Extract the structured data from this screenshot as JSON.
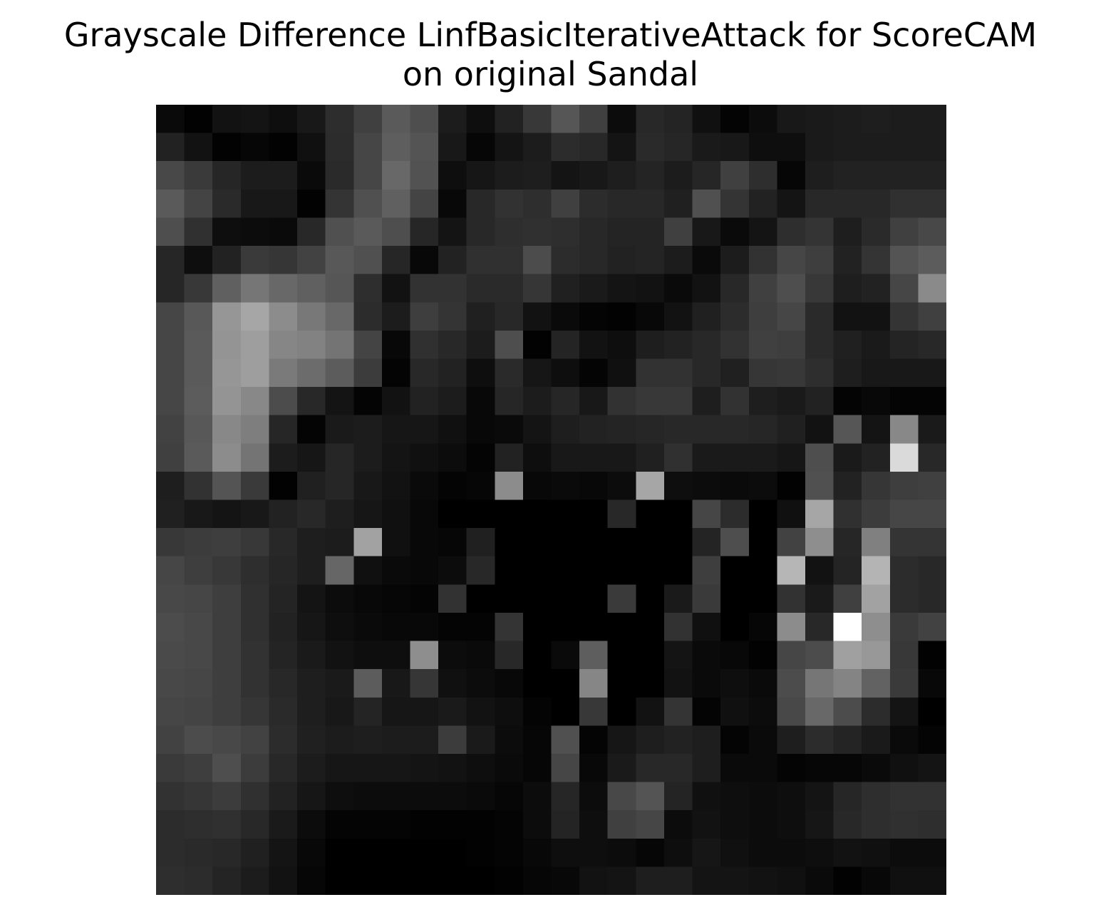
{
  "chart_data": {
    "type": "heatmap",
    "title": "Grayscale Difference LinfBasicIterativeAttack for ScoreCAM on original Sandal",
    "title_lines": [
      "Grayscale Difference LinfBasicIterativeAttack for ScoreCAM",
      "on original Sandal"
    ],
    "xlabel": "",
    "ylabel": "",
    "axes_visible": false,
    "colormap": "gray",
    "value_range": [
      0,
      255
    ],
    "rows": 28,
    "cols": 28,
    "values": [
      [
        10,
        2,
        18,
        20,
        14,
        24,
        45,
        64,
        90,
        78,
        28,
        14,
        34,
        56,
        86,
        64,
        12,
        40,
        36,
        16,
        4,
        12,
        24,
        26,
        28,
        30,
        28,
        28
      ],
      [
        34,
        18,
        2,
        6,
        2,
        16,
        44,
        70,
        94,
        84,
        24,
        6,
        20,
        28,
        44,
        40,
        20,
        42,
        38,
        26,
        24,
        14,
        14,
        26,
        28,
        28,
        28,
        28
      ],
      [
        72,
        58,
        38,
        28,
        28,
        10,
        42,
        70,
        104,
        82,
        14,
        22,
        28,
        30,
        20,
        24,
        30,
        36,
        28,
        38,
        64,
        46,
        6,
        30,
        34,
        34,
        34,
        34
      ],
      [
        90,
        68,
        42,
        24,
        24,
        2,
        52,
        80,
        96,
        68,
        8,
        40,
        50,
        46,
        64,
        44,
        40,
        40,
        32,
        80,
        52,
        34,
        20,
        40,
        40,
        40,
        48,
        48
      ],
      [
        78,
        48,
        14,
        12,
        10,
        40,
        80,
        90,
        78,
        38,
        20,
        40,
        46,
        48,
        46,
        40,
        36,
        36,
        64,
        24,
        10,
        20,
        46,
        52,
        30,
        42,
        64,
        72
      ],
      [
        38,
        14,
        34,
        58,
        54,
        66,
        88,
        80,
        38,
        8,
        34,
        48,
        48,
        76,
        44,
        40,
        34,
        36,
        28,
        10,
        28,
        50,
        70,
        62,
        34,
        52,
        84,
        92
      ],
      [
        38,
        56,
        96,
        118,
        104,
        96,
        86,
        46,
        18,
        50,
        50,
        42,
        42,
        54,
        32,
        26,
        20,
        18,
        10,
        18,
        40,
        64,
        78,
        56,
        30,
        34,
        70,
        138
      ],
      [
        70,
        88,
        150,
        166,
        140,
        120,
        104,
        44,
        28,
        62,
        52,
        32,
        40,
        18,
        10,
        4,
        2,
        8,
        18,
        32,
        44,
        62,
        70,
        42,
        18,
        18,
        52,
        64
      ],
      [
        70,
        90,
        148,
        158,
        134,
        130,
        116,
        68,
        8,
        48,
        40,
        28,
        78,
        2,
        36,
        18,
        14,
        30,
        34,
        40,
        50,
        64,
        62,
        42,
        32,
        26,
        36,
        40
      ],
      [
        70,
        90,
        150,
        158,
        122,
        108,
        92,
        60,
        4,
        40,
        34,
        14,
        42,
        22,
        14,
        4,
        16,
        50,
        50,
        40,
        32,
        54,
        56,
        46,
        30,
        24,
        24,
        24
      ],
      [
        70,
        92,
        148,
        136,
        76,
        40,
        20,
        4,
        18,
        34,
        28,
        8,
        38,
        28,
        38,
        24,
        50,
        56,
        56,
        30,
        50,
        30,
        26,
        34,
        4,
        8,
        4,
        4
      ],
      [
        66,
        88,
        136,
        126,
        38,
        4,
        26,
        28,
        22,
        22,
        16,
        8,
        10,
        20,
        30,
        34,
        36,
        38,
        40,
        40,
        40,
        38,
        32,
        18,
        86,
        20,
        136,
        26
      ],
      [
        64,
        90,
        140,
        116,
        28,
        22,
        38,
        28,
        20,
        16,
        12,
        4,
        34,
        14,
        24,
        24,
        24,
        32,
        48,
        26,
        26,
        26,
        22,
        78,
        26,
        34,
        218,
        40
      ],
      [
        30,
        50,
        84,
        58,
        2,
        32,
        38,
        24,
        18,
        10,
        4,
        6,
        140,
        8,
        10,
        8,
        12,
        166,
        14,
        12,
        10,
        12,
        2,
        80,
        34,
        54,
        62,
        64
      ],
      [
        32,
        24,
        20,
        24,
        34,
        40,
        30,
        22,
        16,
        8,
        0,
        0,
        0,
        0,
        0,
        0,
        40,
        0,
        0,
        70,
        44,
        0,
        16,
        166,
        48,
        60,
        70,
        70
      ],
      [
        56,
        60,
        62,
        56,
        40,
        30,
        28,
        162,
        16,
        8,
        6,
        32,
        0,
        0,
        0,
        0,
        0,
        0,
        0,
        36,
        78,
        0,
        66,
        142,
        38,
        128,
        52,
        52
      ],
      [
        70,
        62,
        56,
        46,
        38,
        30,
        102,
        16,
        10,
        8,
        12,
        40,
        0,
        0,
        0,
        0,
        0,
        0,
        0,
        62,
        0,
        0,
        182,
        18,
        36,
        180,
        44,
        40
      ],
      [
        72,
        70,
        62,
        48,
        36,
        20,
        12,
        8,
        6,
        4,
        50,
        0,
        0,
        0,
        0,
        0,
        58,
        0,
        26,
        58,
        0,
        0,
        50,
        26,
        64,
        162,
        44,
        40
      ],
      [
        76,
        72,
        62,
        48,
        34,
        22,
        14,
        10,
        8,
        8,
        4,
        4,
        52,
        0,
        0,
        0,
        0,
        0,
        50,
        16,
        0,
        6,
        140,
        40,
        255,
        142,
        58,
        66
      ],
      [
        74,
        72,
        62,
        50,
        36,
        26,
        18,
        14,
        14,
        142,
        12,
        10,
        40,
        0,
        10,
        94,
        0,
        0,
        20,
        10,
        8,
        2,
        70,
        76,
        160,
        152,
        56,
        2
      ],
      [
        72,
        70,
        62,
        50,
        40,
        30,
        26,
        92,
        24,
        54,
        16,
        12,
        8,
        0,
        0,
        134,
        0,
        0,
        18,
        10,
        14,
        10,
        76,
        118,
        132,
        98,
        58,
        8
      ],
      [
        70,
        68,
        62,
        54,
        42,
        30,
        24,
        36,
        22,
        22,
        26,
        18,
        14,
        4,
        0,
        56,
        0,
        18,
        52,
        4,
        16,
        12,
        72,
        104,
        76,
        44,
        20,
        0
      ],
      [
        66,
        76,
        72,
        66,
        44,
        32,
        28,
        30,
        28,
        28,
        60,
        26,
        12,
        6,
        80,
        4,
        22,
        30,
        34,
        30,
        4,
        10,
        30,
        44,
        36,
        26,
        10,
        4
      ],
      [
        58,
        62,
        78,
        60,
        40,
        28,
        22,
        22,
        22,
        20,
        18,
        14,
        10,
        6,
        70,
        8,
        26,
        40,
        40,
        30,
        10,
        10,
        4,
        6,
        6,
        10,
        16,
        20
      ],
      [
        50,
        54,
        60,
        48,
        34,
        22,
        14,
        12,
        12,
        12,
        12,
        10,
        6,
        12,
        38,
        12,
        72,
        84,
        36,
        16,
        14,
        12,
        14,
        20,
        38,
        46,
        50,
        50
      ],
      [
        44,
        46,
        48,
        40,
        26,
        12,
        4,
        4,
        4,
        2,
        2,
        2,
        4,
        12,
        36,
        14,
        64,
        70,
        12,
        18,
        14,
        12,
        14,
        22,
        40,
        46,
        48,
        46
      ],
      [
        44,
        42,
        40,
        32,
        20,
        8,
        0,
        0,
        0,
        0,
        0,
        2,
        4,
        8,
        14,
        14,
        12,
        6,
        14,
        22,
        16,
        12,
        12,
        14,
        18,
        16,
        12,
        12
      ],
      [
        46,
        44,
        36,
        28,
        18,
        6,
        0,
        0,
        0,
        0,
        0,
        0,
        2,
        6,
        8,
        18,
        20,
        30,
        30,
        20,
        20,
        18,
        16,
        10,
        2,
        8,
        16,
        16
      ]
    ]
  }
}
